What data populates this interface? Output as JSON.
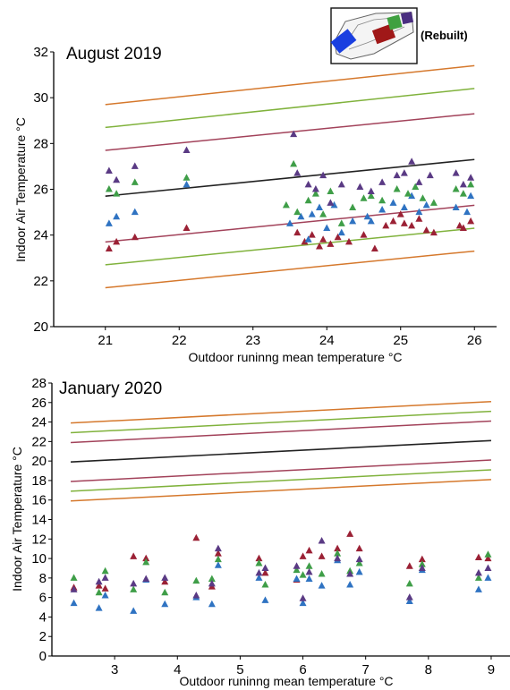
{
  "colors": {
    "orange": "#d5782c",
    "green": "#80b23c",
    "maroon": "#a2425a",
    "black": "#222222",
    "blue": "#2f73c2",
    "tri_maroon": "#9b2135",
    "tri_green": "#3f9e48",
    "tri_purple": "#5a3a84",
    "inset_blue": "#1a3fe0",
    "inset_red": "#a01818",
    "inset_green": "#3fa040",
    "inset_purple": "#4a2e80"
  },
  "inset": {
    "label": "(Rebuilt)"
  },
  "chart_data": [
    {
      "type": "scatter",
      "title": "August 2019",
      "xlabel": "Outdoor runinng mean temperature °C",
      "ylabel": "Indoor Air Temperature °C",
      "xlim": [
        20.3,
        26.3
      ],
      "ylim": [
        20,
        32
      ],
      "xticks": [
        21,
        22,
        23,
        24,
        25,
        26
      ],
      "yticks": [
        20,
        22,
        24,
        26,
        28,
        30,
        32
      ],
      "comfort_lines": [
        {
          "color": "orange",
          "x": [
            21,
            26
          ],
          "y": [
            29.7,
            31.4
          ]
        },
        {
          "color": "green",
          "x": [
            21,
            26
          ],
          "y": [
            28.7,
            30.4
          ]
        },
        {
          "color": "maroon",
          "x": [
            21,
            26
          ],
          "y": [
            27.7,
            29.3
          ]
        },
        {
          "color": "black",
          "x": [
            21,
            26
          ],
          "y": [
            25.7,
            27.3
          ]
        },
        {
          "color": "maroon",
          "x": [
            21,
            26
          ],
          "y": [
            23.7,
            25.3
          ]
        },
        {
          "color": "green",
          "x": [
            21,
            26
          ],
          "y": [
            22.7,
            24.3
          ]
        },
        {
          "color": "orange",
          "x": [
            21,
            26
          ],
          "y": [
            21.7,
            23.3
          ]
        }
      ],
      "series": [
        {
          "color": "tri_maroon",
          "points": [
            [
              21.05,
              23.4
            ],
            [
              21.15,
              23.7
            ],
            [
              21.4,
              23.9
            ],
            [
              22.1,
              24.3
            ],
            [
              23.6,
              24.1
            ],
            [
              23.7,
              23.7
            ],
            [
              23.8,
              24.0
            ],
            [
              23.9,
              23.5
            ],
            [
              23.95,
              23.8
            ],
            [
              24.05,
              23.6
            ],
            [
              24.15,
              23.9
            ],
            [
              24.3,
              23.7
            ],
            [
              24.5,
              24.0
            ],
            [
              24.65,
              23.4
            ],
            [
              24.8,
              24.4
            ],
            [
              24.9,
              24.6
            ],
            [
              25.0,
              24.9
            ],
            [
              25.05,
              24.5
            ],
            [
              25.15,
              24.4
            ],
            [
              25.25,
              24.7
            ],
            [
              25.35,
              24.2
            ],
            [
              25.45,
              24.1
            ],
            [
              25.8,
              24.4
            ],
            [
              25.85,
              24.3
            ],
            [
              25.95,
              24.6
            ]
          ]
        },
        {
          "color": "blue",
          "points": [
            [
              21.05,
              24.5
            ],
            [
              21.15,
              24.8
            ],
            [
              21.4,
              25.0
            ],
            [
              22.1,
              26.2
            ],
            [
              23.5,
              24.5
            ],
            [
              23.65,
              24.8
            ],
            [
              23.75,
              23.8
            ],
            [
              23.8,
              24.9
            ],
            [
              23.9,
              25.2
            ],
            [
              24.0,
              24.3
            ],
            [
              24.1,
              25.3
            ],
            [
              24.2,
              24.1
            ],
            [
              24.35,
              24.6
            ],
            [
              24.55,
              24.8
            ],
            [
              24.6,
              24.6
            ],
            [
              24.75,
              25.1
            ],
            [
              24.9,
              25.4
            ],
            [
              25.05,
              25.2
            ],
            [
              25.15,
              25.7
            ],
            [
              25.25,
              25.0
            ],
            [
              25.35,
              25.3
            ],
            [
              25.75,
              25.2
            ],
            [
              25.9,
              25.0
            ],
            [
              25.95,
              25.7
            ]
          ]
        },
        {
          "color": "tri_green",
          "points": [
            [
              21.05,
              26.0
            ],
            [
              21.15,
              25.8
            ],
            [
              21.4,
              26.3
            ],
            [
              22.1,
              26.5
            ],
            [
              23.45,
              25.3
            ],
            [
              23.55,
              27.1
            ],
            [
              23.6,
              25.0
            ],
            [
              23.75,
              25.5
            ],
            [
              23.85,
              25.8
            ],
            [
              23.95,
              24.9
            ],
            [
              24.05,
              25.9
            ],
            [
              24.2,
              24.5
            ],
            [
              24.35,
              25.2
            ],
            [
              24.5,
              25.6
            ],
            [
              24.6,
              25.7
            ],
            [
              24.75,
              25.5
            ],
            [
              24.95,
              26.0
            ],
            [
              25.1,
              25.8
            ],
            [
              25.2,
              26.1
            ],
            [
              25.3,
              25.6
            ],
            [
              25.45,
              25.4
            ],
            [
              25.75,
              26.0
            ],
            [
              25.85,
              25.8
            ],
            [
              25.95,
              26.2
            ]
          ]
        },
        {
          "color": "tri_purple",
          "points": [
            [
              21.05,
              26.8
            ],
            [
              21.15,
              26.4
            ],
            [
              21.4,
              27.0
            ],
            [
              22.1,
              27.7
            ],
            [
              23.55,
              28.4
            ],
            [
              23.6,
              26.7
            ],
            [
              23.75,
              26.2
            ],
            [
              23.85,
              26.0
            ],
            [
              23.95,
              26.6
            ],
            [
              24.05,
              25.4
            ],
            [
              24.2,
              26.2
            ],
            [
              24.45,
              26.1
            ],
            [
              24.6,
              25.9
            ],
            [
              24.75,
              26.3
            ],
            [
              24.95,
              26.6
            ],
            [
              25.05,
              26.7
            ],
            [
              25.15,
              27.2
            ],
            [
              25.25,
              26.3
            ],
            [
              25.4,
              26.6
            ],
            [
              25.75,
              26.7
            ],
            [
              25.85,
              26.2
            ],
            [
              25.95,
              26.5
            ]
          ]
        }
      ]
    },
    {
      "type": "scatter",
      "title": "January 2020",
      "xlabel": "Outdoor runinng mean temperature °C",
      "ylabel": "Indoor Air Temperature °C",
      "xlim": [
        2.0,
        9.3
      ],
      "ylim": [
        0,
        28
      ],
      "xticks": [
        3,
        4,
        5,
        6,
        7,
        8,
        9
      ],
      "yticks": [
        0,
        2,
        4,
        6,
        8,
        10,
        12,
        14,
        16,
        18,
        20,
        22,
        24,
        26,
        28
      ],
      "comfort_lines": [
        {
          "color": "orange",
          "x": [
            2.3,
            9.0
          ],
          "y": [
            23.9,
            26.1
          ]
        },
        {
          "color": "green",
          "x": [
            2.3,
            9.0
          ],
          "y": [
            22.9,
            25.1
          ]
        },
        {
          "color": "maroon",
          "x": [
            2.3,
            9.0
          ],
          "y": [
            21.9,
            24.1
          ]
        },
        {
          "color": "black",
          "x": [
            2.3,
            9.0
          ],
          "y": [
            19.9,
            22.1
          ]
        },
        {
          "color": "maroon",
          "x": [
            2.3,
            9.0
          ],
          "y": [
            17.9,
            20.1
          ]
        },
        {
          "color": "green",
          "x": [
            2.3,
            9.0
          ],
          "y": [
            16.9,
            19.1
          ]
        },
        {
          "color": "orange",
          "x": [
            2.3,
            9.0
          ],
          "y": [
            15.9,
            18.1
          ]
        }
      ],
      "series": [
        {
          "color": "tri_maroon",
          "points": [
            [
              2.35,
              7.0
            ],
            [
              2.75,
              7.2
            ],
            [
              2.85,
              6.9
            ],
            [
              3.3,
              10.2
            ],
            [
              3.5,
              10.0
            ],
            [
              3.8,
              7.6
            ],
            [
              4.3,
              12.1
            ],
            [
              4.55,
              7.1
            ],
            [
              4.65,
              10.5
            ],
            [
              5.3,
              10.0
            ],
            [
              5.4,
              8.5
            ],
            [
              5.9,
              7.8
            ],
            [
              6.0,
              10.2
            ],
            [
              6.1,
              10.8
            ],
            [
              6.3,
              10.2
            ],
            [
              6.55,
              11.0
            ],
            [
              6.75,
              12.5
            ],
            [
              6.9,
              11.0
            ],
            [
              7.7,
              9.2
            ],
            [
              7.9,
              9.9
            ],
            [
              8.8,
              10.1
            ],
            [
              8.95,
              10.0
            ]
          ]
        },
        {
          "color": "blue",
          "points": [
            [
              2.35,
              5.4
            ],
            [
              2.75,
              4.9
            ],
            [
              2.85,
              6.2
            ],
            [
              3.3,
              4.6
            ],
            [
              3.5,
              7.8
            ],
            [
              3.8,
              5.3
            ],
            [
              4.3,
              6.0
            ],
            [
              4.55,
              5.3
            ],
            [
              4.65,
              9.3
            ],
            [
              5.3,
              8.0
            ],
            [
              5.4,
              5.7
            ],
            [
              5.9,
              7.9
            ],
            [
              6.0,
              5.4
            ],
            [
              6.1,
              7.9
            ],
            [
              6.3,
              7.2
            ],
            [
              6.55,
              9.8
            ],
            [
              6.75,
              7.3
            ],
            [
              6.9,
              8.6
            ],
            [
              7.7,
              5.6
            ],
            [
              7.9,
              8.8
            ],
            [
              8.8,
              6.8
            ],
            [
              8.95,
              8.0
            ]
          ]
        },
        {
          "color": "tri_green",
          "points": [
            [
              2.35,
              8.0
            ],
            [
              2.75,
              6.5
            ],
            [
              2.85,
              8.7
            ],
            [
              3.3,
              6.8
            ],
            [
              3.5,
              9.6
            ],
            [
              3.8,
              6.5
            ],
            [
              4.3,
              7.7
            ],
            [
              4.55,
              7.9
            ],
            [
              4.65,
              9.9
            ],
            [
              5.3,
              9.5
            ],
            [
              5.4,
              7.3
            ],
            [
              5.9,
              8.8
            ],
            [
              6.0,
              8.3
            ],
            [
              6.1,
              9.2
            ],
            [
              6.3,
              8.4
            ],
            [
              6.55,
              10.5
            ],
            [
              6.75,
              8.7
            ],
            [
              6.9,
              9.5
            ],
            [
              7.7,
              7.4
            ],
            [
              7.9,
              9.4
            ],
            [
              8.8,
              8.0
            ],
            [
              8.95,
              10.4
            ]
          ]
        },
        {
          "color": "tri_purple",
          "points": [
            [
              2.35,
              6.8
            ],
            [
              2.75,
              7.6
            ],
            [
              2.85,
              8.0
            ],
            [
              3.3,
              7.4
            ],
            [
              3.5,
              7.9
            ],
            [
              3.8,
              8.0
            ],
            [
              4.3,
              6.2
            ],
            [
              4.55,
              7.4
            ],
            [
              4.65,
              11.0
            ],
            [
              5.3,
              8.5
            ],
            [
              5.4,
              9.0
            ],
            [
              5.9,
              9.2
            ],
            [
              6.0,
              5.9
            ],
            [
              6.1,
              8.6
            ],
            [
              6.3,
              11.8
            ],
            [
              6.55,
              10.0
            ],
            [
              6.75,
              8.4
            ],
            [
              6.9,
              9.9
            ],
            [
              7.7,
              6.0
            ],
            [
              7.9,
              9.0
            ],
            [
              8.8,
              8.5
            ],
            [
              8.95,
              9.0
            ]
          ]
        }
      ]
    }
  ]
}
